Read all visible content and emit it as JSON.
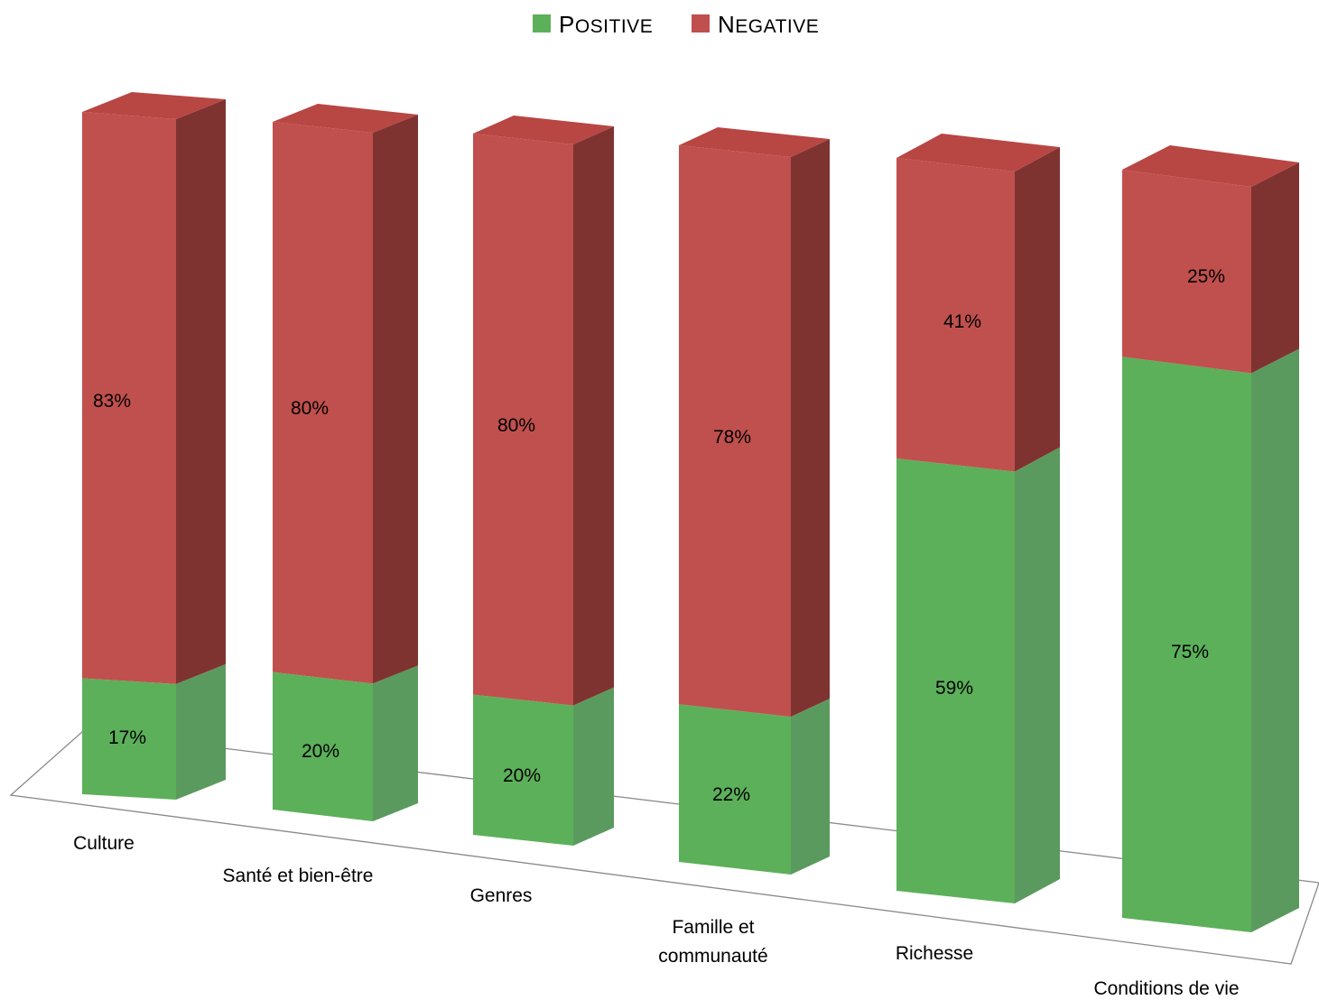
{
  "chart_data": {
    "type": "bar",
    "stacked": true,
    "three_d": true,
    "categories": [
      "Culture",
      "Santé et bien-être",
      "Genres",
      "Famille et communauté",
      "Richesse",
      "Conditions de vie"
    ],
    "series": [
      {
        "name": "Positive",
        "values": [
          17,
          20,
          20,
          22,
          59,
          75
        ],
        "labels": [
          "17%",
          "20%",
          "20%",
          "22%",
          "59%",
          "75%"
        ]
      },
      {
        "name": "Negative",
        "values": [
          83,
          80,
          80,
          78,
          41,
          25
        ],
        "labels": [
          "83%",
          "80%",
          "80%",
          "78%",
          "41%",
          "25%"
        ]
      }
    ],
    "unit": "%",
    "legend_position": "top-center",
    "colors": {
      "positive_front": "#5cb05a",
      "positive_side": "#5b9a5e",
      "negative_front": "#c0504d",
      "negative_side": "#7f3331",
      "negative_top": "#b84643"
    }
  },
  "legend": {
    "positive_initial": "P",
    "positive_rest": "OSITIVE",
    "negative_initial": "N",
    "negative_rest": "EGATIVE"
  },
  "axis_labels": [
    {
      "lines": [
        "Culture"
      ]
    },
    {
      "lines": [
        "Santé et bien-être"
      ]
    },
    {
      "lines": [
        "Genres"
      ]
    },
    {
      "lines": [
        "Famille et",
        "communauté"
      ]
    },
    {
      "lines": [
        "Richesse"
      ]
    },
    {
      "lines": [
        "Conditions de vie"
      ]
    }
  ]
}
